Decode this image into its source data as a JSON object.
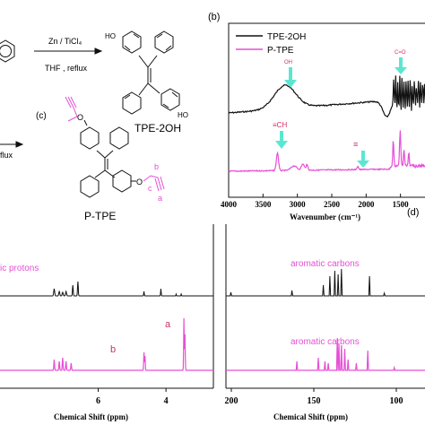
{
  "scheme": {
    "reagent_top": "Zn / TiCl₄",
    "reagent_bottom": "THF , reflux",
    "reflux_fragment": "flux",
    "product1": "TPE-2OH",
    "ho_label_top": "HO",
    "ho_label_bottom": "HO",
    "product2": "P-TPE",
    "panel_c": "(c)",
    "atom_b": "b",
    "atom_c": "c",
    "atom_a": "a",
    "o_top": "O",
    "o_bottom": "O"
  },
  "ir": {
    "panel": "(b)",
    "legend": [
      {
        "name": "TPE-2OH",
        "color": "#111111"
      },
      {
        "name": "P-TPE",
        "color": "#e64fd6"
      }
    ],
    "annotations": {
      "oh": "OH",
      "co": "C=O",
      "ch": "≡CH",
      "triple": "≡"
    },
    "xticks": [
      "4000",
      "3500",
      "3000",
      "2500",
      "2000",
      "1500",
      "1000"
    ],
    "xlabel": "Wavenumber (cm⁻¹)",
    "arrow_color": "#5ce6d2"
  },
  "nmr_h": {
    "label_top": "ic protons",
    "peak_b": "b",
    "peak_a": "a",
    "xticks": [
      "6",
      "4"
    ],
    "xlabel": "Chemical Shift (ppm)"
  },
  "nmr_c": {
    "panel": "(d)",
    "label_top": "aromatic carbons",
    "label_bottom": "aromatic carbons",
    "xticks": [
      "200",
      "150",
      "100"
    ],
    "xlabel": "Chemical Shift (ppm)"
  },
  "chart_data": [
    {
      "type": "line",
      "title": "",
      "xlabel": "Wavenumber (cm⁻¹)",
      "xlim": [
        4000,
        1000
      ],
      "series": [
        {
          "name": "TPE-2OH",
          "x": [
            4000,
            3500,
            3300,
            3150,
            3000,
            2500,
            2000,
            1700,
            1610,
            1590,
            1510,
            1450,
            1400
          ],
          "y": [
            0.8,
            0.85,
            0.95,
            1.0,
            0.95,
            0.88,
            0.8,
            0.7,
            1.0,
            0.45,
            0.95,
            0.6,
            0.85
          ]
        },
        {
          "name": "P-TPE",
          "x": [
            4000,
            3500,
            3300,
            3250,
            3000,
            2500,
            2130,
            2100,
            1600,
            1500,
            1400
          ],
          "y": [
            0.05,
            0.06,
            0.1,
            0.45,
            0.2,
            0.05,
            0.08,
            0.02,
            0.45,
            0.55,
            0.3
          ]
        }
      ]
    },
    {
      "type": "line",
      "xlabel": "Chemical Shift (ppm)",
      "series": [
        {
          "name": "",
          "x": [
            7.2,
            6.8,
            4.65,
            4.15
          ],
          "y": [
            0.12,
            0.2,
            0.05,
            0.1
          ]
        },
        {
          "name": "",
          "x": [
            7.2,
            6.9,
            4.65,
            3.45
          ],
          "y": [
            0.15,
            0.15,
            0.25,
            0.6
          ]
        }
      ]
    },
    {
      "type": "line",
      "xlabel": "Chemical Shift (ppm)",
      "xlim": [
        200,
        95
      ],
      "series": [
        {
          "name": "",
          "x": [
            198,
            160,
            141,
            136,
            132,
            130,
            113
          ],
          "y": [
            0.05,
            0.08,
            0.15,
            0.3,
            0.45,
            0.4,
            0.35
          ]
        },
        {
          "name": "",
          "x": [
            157,
            144,
            138,
            132,
            131,
            129,
            120,
            114
          ],
          "y": [
            0.1,
            0.15,
            0.2,
            0.5,
            0.45,
            0.4,
            0.25,
            0.35
          ]
        }
      ]
    }
  ]
}
